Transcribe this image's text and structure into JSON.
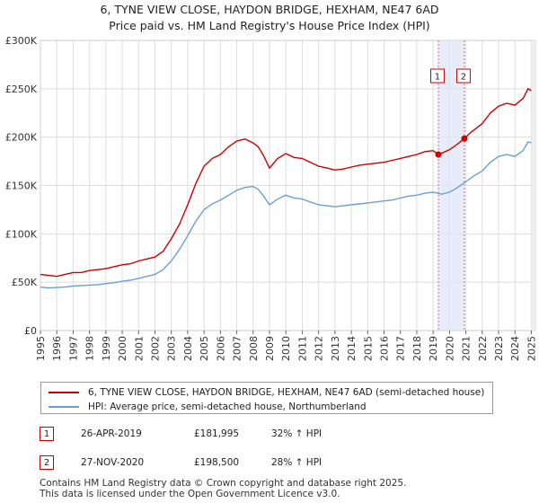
{
  "chart_data": {
    "type": "line",
    "title": "6, TYNE VIEW CLOSE, HAYDON BRIDGE, HEXHAM, NE47 6AD",
    "subtitle": "Price paid vs. HM Land Registry's House Price Index (HPI)",
    "xlim": [
      1995,
      2025.25
    ],
    "ylim": [
      0,
      300000
    ],
    "y_ticks": [
      {
        "value": 0,
        "label": "£0"
      },
      {
        "value": 50000,
        "label": "£50K"
      },
      {
        "value": 100000,
        "label": "£100K"
      },
      {
        "value": 150000,
        "label": "£150K"
      },
      {
        "value": 200000,
        "label": "£200K"
      },
      {
        "value": 250000,
        "label": "£250K"
      },
      {
        "value": 300000,
        "label": "£300K"
      }
    ],
    "x_ticks": [
      "1995",
      "1996",
      "1997",
      "1998",
      "1999",
      "2000",
      "2001",
      "2002",
      "2003",
      "2004",
      "2005",
      "2006",
      "2007",
      "2008",
      "2009",
      "2010",
      "2011",
      "2012",
      "2013",
      "2014",
      "2015",
      "2016",
      "2017",
      "2018",
      "2019",
      "2020",
      "2021",
      "2022",
      "2023",
      "2024",
      "2025"
    ],
    "grid": true,
    "series": [
      {
        "name": "6, TYNE VIEW CLOSE, HAYDON BRIDGE, HEXHAM, NE47 6AD (semi-detached house)",
        "color": "#cc0000",
        "points": [
          [
            1995.0,
            58000
          ],
          [
            1995.5,
            57000
          ],
          [
            1996.0,
            56000
          ],
          [
            1996.5,
            58000
          ],
          [
            1997.0,
            60000
          ],
          [
            1997.5,
            60000
          ],
          [
            1998.0,
            62000
          ],
          [
            1998.5,
            63000
          ],
          [
            1999.0,
            64000
          ],
          [
            1999.5,
            66000
          ],
          [
            2000.0,
            68000
          ],
          [
            2000.5,
            69000
          ],
          [
            2001.0,
            72000
          ],
          [
            2001.5,
            74000
          ],
          [
            2002.0,
            76000
          ],
          [
            2002.5,
            82000
          ],
          [
            2003.0,
            95000
          ],
          [
            2003.5,
            110000
          ],
          [
            2004.0,
            130000
          ],
          [
            2004.5,
            152000
          ],
          [
            2005.0,
            170000
          ],
          [
            2005.5,
            178000
          ],
          [
            2006.0,
            182000
          ],
          [
            2006.5,
            190000
          ],
          [
            2007.0,
            196000
          ],
          [
            2007.5,
            198000
          ],
          [
            2008.0,
            194000
          ],
          [
            2008.3,
            190000
          ],
          [
            2008.6,
            182000
          ],
          [
            2009.0,
            168000
          ],
          [
            2009.5,
            178000
          ],
          [
            2010.0,
            183000
          ],
          [
            2010.5,
            179000
          ],
          [
            2011.0,
            178000
          ],
          [
            2011.5,
            174000
          ],
          [
            2012.0,
            170000
          ],
          [
            2012.5,
            168000
          ],
          [
            2013.0,
            166000
          ],
          [
            2013.5,
            167000
          ],
          [
            2014.0,
            169000
          ],
          [
            2014.5,
            171000
          ],
          [
            2015.0,
            172000
          ],
          [
            2015.5,
            173000
          ],
          [
            2016.0,
            174000
          ],
          [
            2016.5,
            176000
          ],
          [
            2017.0,
            178000
          ],
          [
            2017.5,
            180000
          ],
          [
            2018.0,
            182000
          ],
          [
            2018.5,
            185000
          ],
          [
            2019.0,
            186000
          ],
          [
            2019.32,
            181995
          ],
          [
            2019.6,
            184000
          ],
          [
            2020.0,
            187000
          ],
          [
            2020.5,
            193000
          ],
          [
            2020.91,
            198500
          ],
          [
            2021.3,
            205000
          ],
          [
            2021.7,
            210000
          ],
          [
            2022.0,
            214000
          ],
          [
            2022.5,
            225000
          ],
          [
            2023.0,
            232000
          ],
          [
            2023.5,
            235000
          ],
          [
            2024.0,
            233000
          ],
          [
            2024.5,
            240000
          ],
          [
            2024.8,
            250000
          ],
          [
            2025.0,
            248000
          ]
        ]
      },
      {
        "name": "HPI: Average price, semi-detached house, Northumberland",
        "color": "#6a9fd4",
        "points": [
          [
            1995.0,
            45000
          ],
          [
            1995.5,
            44000
          ],
          [
            1996.0,
            44500
          ],
          [
            1996.5,
            45000
          ],
          [
            1997.0,
            46000
          ],
          [
            1997.5,
            46500
          ],
          [
            1998.0,
            47000
          ],
          [
            1998.5,
            47500
          ],
          [
            1999.0,
            48500
          ],
          [
            1999.5,
            49500
          ],
          [
            2000.0,
            51000
          ],
          [
            2000.5,
            52000
          ],
          [
            2001.0,
            54000
          ],
          [
            2001.5,
            56000
          ],
          [
            2002.0,
            58000
          ],
          [
            2002.5,
            63000
          ],
          [
            2003.0,
            72000
          ],
          [
            2003.5,
            84000
          ],
          [
            2004.0,
            98000
          ],
          [
            2004.5,
            113000
          ],
          [
            2005.0,
            125000
          ],
          [
            2005.5,
            131000
          ],
          [
            2006.0,
            135000
          ],
          [
            2006.5,
            140000
          ],
          [
            2007.0,
            145000
          ],
          [
            2007.5,
            148000
          ],
          [
            2008.0,
            149000
          ],
          [
            2008.3,
            146000
          ],
          [
            2008.6,
            140000
          ],
          [
            2009.0,
            130000
          ],
          [
            2009.5,
            136000
          ],
          [
            2010.0,
            140000
          ],
          [
            2010.5,
            137000
          ],
          [
            2011.0,
            136000
          ],
          [
            2011.5,
            133000
          ],
          [
            2012.0,
            130000
          ],
          [
            2012.5,
            129000
          ],
          [
            2013.0,
            128000
          ],
          [
            2013.5,
            129000
          ],
          [
            2014.0,
            130000
          ],
          [
            2014.5,
            131000
          ],
          [
            2015.0,
            132000
          ],
          [
            2015.5,
            133000
          ],
          [
            2016.0,
            134000
          ],
          [
            2016.5,
            135000
          ],
          [
            2017.0,
            137000
          ],
          [
            2017.5,
            139000
          ],
          [
            2018.0,
            140000
          ],
          [
            2018.5,
            142000
          ],
          [
            2019.0,
            143000
          ],
          [
            2019.5,
            141000
          ],
          [
            2020.0,
            143000
          ],
          [
            2020.5,
            148000
          ],
          [
            2021.0,
            154000
          ],
          [
            2021.5,
            160000
          ],
          [
            2022.0,
            165000
          ],
          [
            2022.5,
            174000
          ],
          [
            2023.0,
            180000
          ],
          [
            2023.5,
            182000
          ],
          [
            2024.0,
            180000
          ],
          [
            2024.5,
            186000
          ],
          [
            2024.8,
            195000
          ],
          [
            2025.0,
            194000
          ]
        ]
      }
    ],
    "sales": [
      {
        "id": "1",
        "x": 2019.32,
        "price_value": 181995
      },
      {
        "id": "2",
        "x": 2020.91,
        "price_value": 198500
      }
    ]
  },
  "legend": {
    "property": "6, TYNE VIEW CLOSE, HAYDON BRIDGE, HEXHAM, NE47 6AD (semi-detached house)",
    "hpi": "HPI: Average price, semi-detached house, Northumberland"
  },
  "sales_table": [
    {
      "id": "1",
      "date": "26-APR-2019",
      "price": "£181,995",
      "pct": "32% ↑ HPI"
    },
    {
      "id": "2",
      "date": "27-NOV-2020",
      "price": "£198,500",
      "pct": "28% ↑ HPI"
    }
  ],
  "footer": {
    "line1": "Contains HM Land Registry data © Crown copyright and database right 2025.",
    "line2": "This data is licensed under the Open Government Licence v3.0."
  },
  "colors": {
    "property": "#cc0000",
    "hpi": "#6a9fd4",
    "shade": "#dbe4f5",
    "grid": "#dddddd"
  }
}
